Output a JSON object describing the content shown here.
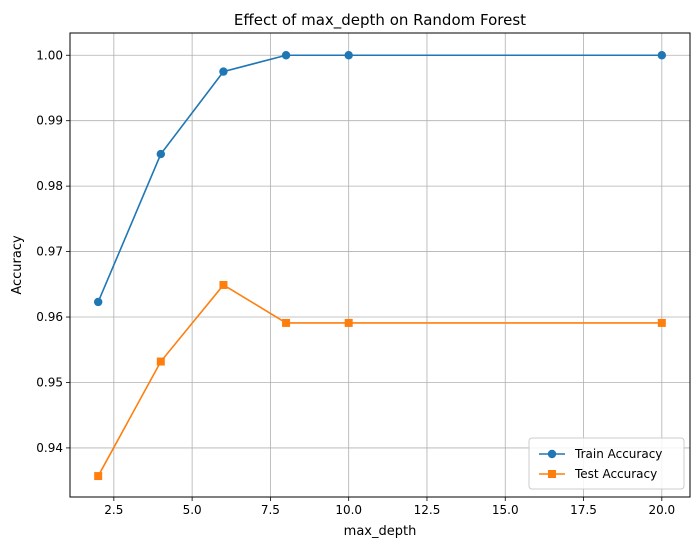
{
  "chart_data": {
    "type": "line",
    "title": "Effect of max_depth on Random Forest",
    "xlabel": "max_depth",
    "ylabel": "Accuracy",
    "xlim": [
      1.1,
      20.9
    ],
    "ylim": [
      0.9325,
      1.0034
    ],
    "xticks": [
      2.5,
      5.0,
      7.5,
      10.0,
      12.5,
      15.0,
      17.5,
      20.0
    ],
    "xtick_labels": [
      "2.5",
      "5.0",
      "7.5",
      "10.0",
      "12.5",
      "15.0",
      "17.5",
      "20.0"
    ],
    "yticks": [
      0.94,
      0.95,
      0.96,
      0.97,
      0.98,
      0.99,
      1.0
    ],
    "ytick_labels": [
      "0.94",
      "0.95",
      "0.96",
      "0.97",
      "0.98",
      "0.99",
      "1.00"
    ],
    "grid": true,
    "legend_position": "bottom-right",
    "series": [
      {
        "name": "Train Accuracy",
        "color": "#1f77b4",
        "marker": "circle",
        "x": [
          2,
          4,
          6,
          8,
          10,
          20
        ],
        "y": [
          0.9623,
          0.9849,
          0.9975,
          1.0,
          1.0,
          1.0
        ]
      },
      {
        "name": "Test Accuracy",
        "color": "#ff7f0e",
        "marker": "square",
        "x": [
          2,
          4,
          6,
          8,
          10,
          20
        ],
        "y": [
          0.9357,
          0.9532,
          0.9649,
          0.9591,
          0.9591,
          0.9591
        ]
      }
    ]
  }
}
